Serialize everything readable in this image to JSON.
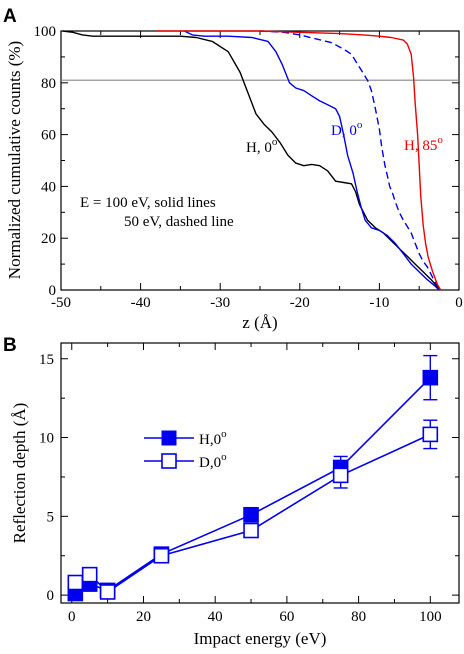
{
  "chart_data": [
    {
      "panel": "A",
      "type": "line",
      "xlabel": "z (Å)",
      "ylabel": "Normalized cumulative counts (%)",
      "xlim": [
        -50,
        0
      ],
      "ylim": [
        0,
        100
      ],
      "xticks": [
        -50,
        -40,
        -30,
        -20,
        -10,
        0
      ],
      "yticks": [
        0,
        20,
        40,
        60,
        80,
        100
      ],
      "reference_line_y": 81,
      "annotations": {
        "energy_line1": "E = 100 eV, solid lines",
        "energy_line2": "50 eV, dashed line"
      },
      "series": [
        {
          "name": "H, 0",
          "superscript": "o",
          "color": "#000000",
          "dash": "solid",
          "points": [
            [
              -49.8,
              100
            ],
            [
              -48.5,
              99.5
            ],
            [
              -47.3,
              98.5
            ],
            [
              -46,
              98
            ],
            [
              -43,
              98
            ],
            [
              -40,
              98
            ],
            [
              -35,
              98
            ],
            [
              -33,
              97.5
            ],
            [
              -31,
              96
            ],
            [
              -29,
              92
            ],
            [
              -27.5,
              84
            ],
            [
              -26.5,
              76
            ],
            [
              -25.5,
              68
            ],
            [
              -24.5,
              64
            ],
            [
              -23.5,
              61
            ],
            [
              -22.5,
              57
            ],
            [
              -21.5,
              52
            ],
            [
              -20.5,
              49
            ],
            [
              -19.5,
              48
            ],
            [
              -18.5,
              48.5
            ],
            [
              -17.5,
              48
            ],
            [
              -16.5,
              46
            ],
            [
              -15.5,
              42
            ],
            [
              -14.5,
              41.5
            ],
            [
              -13.5,
              41
            ],
            [
              -13,
              38
            ],
            [
              -12.5,
              33
            ],
            [
              -11.5,
              27
            ],
            [
              -10.5,
              24
            ],
            [
              -9.5,
              22
            ],
            [
              -8.5,
              19
            ],
            [
              -7.5,
              16
            ],
            [
              -6.5,
              13
            ],
            [
              -5.5,
              10
            ],
            [
              -4.5,
              7
            ],
            [
              -3.5,
              4
            ],
            [
              -2.8,
              1.5
            ],
            [
              -2.5,
              0
            ]
          ]
        },
        {
          "name": "D, 0",
          "superscript": "o",
          "color": "#0000ee",
          "dash": "solid",
          "points": [
            [
              -34.5,
              100
            ],
            [
              -33.5,
              98.5
            ],
            [
              -32,
              98
            ],
            [
              -29,
              98
            ],
            [
              -26,
              97.5
            ],
            [
              -24,
              96
            ],
            [
              -23,
              92
            ],
            [
              -22.2,
              87
            ],
            [
              -21.3,
              80
            ],
            [
              -20.5,
              78
            ],
            [
              -19.5,
              77
            ],
            [
              -18.5,
              75
            ],
            [
              -17.5,
              73
            ],
            [
              -16.5,
              71.5
            ],
            [
              -15.5,
              70
            ],
            [
              -15,
              67
            ],
            [
              -14.5,
              60
            ],
            [
              -14,
              52
            ],
            [
              -13.3,
              45
            ],
            [
              -12.8,
              38
            ],
            [
              -12.3,
              32
            ],
            [
              -11.8,
              27
            ],
            [
              -11,
              24
            ],
            [
              -10,
              23
            ],
            [
              -9,
              21
            ],
            [
              -8,
              18
            ],
            [
              -7,
              14
            ],
            [
              -6,
              10
            ],
            [
              -5,
              7
            ],
            [
              -4,
              4
            ],
            [
              -3,
              1.5
            ],
            [
              -2.5,
              0
            ]
          ]
        },
        {
          "name": "D, 0",
          "superscript": "o",
          "color": "#0000ee",
          "dash": "dashed",
          "points": [
            [
              -25,
              100
            ],
            [
              -22,
              99.5
            ],
            [
              -20,
              98.5
            ],
            [
              -18,
              97
            ],
            [
              -16,
              95.5
            ],
            [
              -14.5,
              93
            ],
            [
              -13.5,
              91
            ],
            [
              -12.5,
              86
            ],
            [
              -11.5,
              81
            ],
            [
              -11,
              77
            ],
            [
              -10.5,
              70
            ],
            [
              -10,
              62
            ],
            [
              -9.7,
              55
            ],
            [
              -9.3,
              48
            ],
            [
              -9,
              44
            ],
            [
              -8.7,
              40
            ],
            [
              -8.3,
              37
            ],
            [
              -8,
              34
            ],
            [
              -7.5,
              30
            ],
            [
              -7,
              27
            ],
            [
              -6.5,
              24.5
            ],
            [
              -6,
              22
            ],
            [
              -5.5,
              18
            ],
            [
              -5,
              14
            ],
            [
              -4.5,
              11
            ],
            [
              -4,
              9
            ],
            [
              -3.5,
              6
            ],
            [
              -3,
              3
            ],
            [
              -2.5,
              1
            ],
            [
              -2.2,
              0
            ]
          ]
        },
        {
          "name": "H, 85",
          "superscript": "o",
          "color": "#ee0000",
          "dash": "solid",
          "points": [
            [
              -38,
              100
            ],
            [
              -30,
              100
            ],
            [
              -25,
              100
            ],
            [
              -20,
              99.5
            ],
            [
              -15,
              99
            ],
            [
              -12,
              98.5
            ],
            [
              -10,
              98
            ],
            [
              -8.5,
              97.5
            ],
            [
              -7,
              96.5
            ],
            [
              -6.5,
              95
            ],
            [
              -6,
              91
            ],
            [
              -5.7,
              82
            ],
            [
              -5.5,
              72
            ],
            [
              -5.2,
              60
            ],
            [
              -5,
              48
            ],
            [
              -4.8,
              36
            ],
            [
              -4.5,
              25
            ],
            [
              -4.2,
              18
            ],
            [
              -3.9,
              13
            ],
            [
              -3.6,
              10
            ],
            [
              -3.3,
              7
            ],
            [
              -3,
              4.5
            ],
            [
              -2.7,
              2
            ],
            [
              -2.3,
              0
            ]
          ]
        }
      ]
    },
    {
      "panel": "B",
      "type": "line",
      "xlabel": "Impact energy (eV)",
      "ylabel": "Reflection depth (Å)",
      "xlim": [
        -3,
        108
      ],
      "ylim": [
        -0.5,
        16
      ],
      "xticks": [
        0,
        20,
        40,
        60,
        80,
        100
      ],
      "yticks": [
        0,
        5,
        10,
        15
      ],
      "color": "#0000ee",
      "series": [
        {
          "name": "H,0",
          "superscript": "o",
          "marker": "filled-square",
          "x": [
            1,
            5,
            10,
            25,
            50,
            75,
            100
          ],
          "y": [
            0.1,
            0.7,
            0.3,
            2.6,
            5.1,
            8.1,
            13.8
          ],
          "yerr": [
            0,
            0,
            0,
            0,
            0,
            0.7,
            1.4
          ]
        },
        {
          "name": "D,0",
          "superscript": "o",
          "marker": "open-square",
          "x": [
            1,
            5,
            10,
            25,
            50,
            75,
            100
          ],
          "y": [
            0.8,
            1.3,
            0.2,
            2.5,
            4.1,
            7.6,
            10.2
          ],
          "yerr": [
            0,
            0,
            0,
            0,
            0,
            0.8,
            0.9
          ]
        }
      ]
    }
  ],
  "panels": {
    "a": "A",
    "b": "B"
  }
}
